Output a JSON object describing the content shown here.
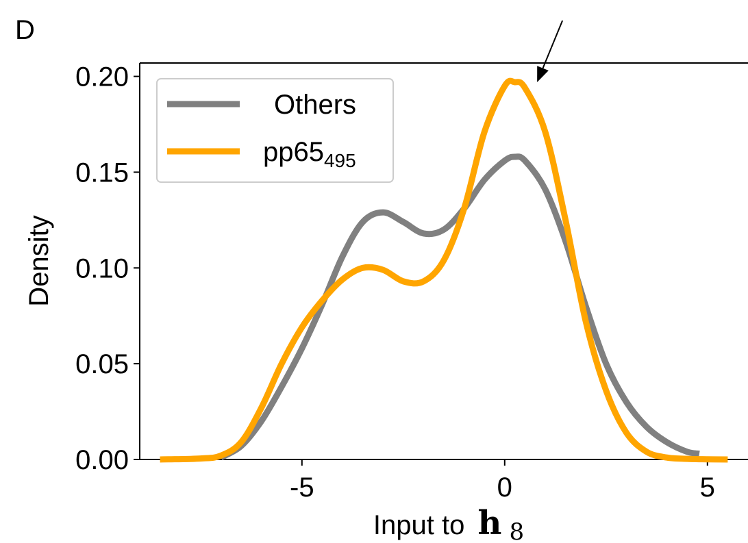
{
  "panel_label": "D",
  "chart_data": {
    "type": "line",
    "xlabel_prefix": "Input to",
    "xlabel_math": "h",
    "xlabel_math_sub": "8",
    "ylabel": "Density",
    "xlim": [
      -9.0,
      6.0
    ],
    "ylim": [
      0.0,
      0.207
    ],
    "xticks": [
      -5,
      0,
      5
    ],
    "xtick_labels": [
      "-5",
      "0",
      "5"
    ],
    "yticks": [
      0.0,
      0.05,
      0.1,
      0.15,
      0.2
    ],
    "ytick_labels": [
      "0.00",
      "0.05",
      "0.10",
      "0.15",
      "0.20"
    ],
    "legend_position": "upper-left",
    "series": [
      {
        "name": "Others",
        "color": "#808080",
        "x": [
          -7.0,
          -6.5,
          -6.0,
          -5.5,
          -5.0,
          -4.5,
          -4.0,
          -3.5,
          -3.0,
          -2.5,
          -2.0,
          -1.5,
          -1.0,
          -0.5,
          0.0,
          0.25,
          0.5,
          1.0,
          1.5,
          2.0,
          2.5,
          3.0,
          3.5,
          4.0,
          4.5,
          4.8
        ],
        "y": [
          0.001,
          0.007,
          0.02,
          0.038,
          0.058,
          0.081,
          0.106,
          0.124,
          0.129,
          0.124,
          0.118,
          0.12,
          0.131,
          0.146,
          0.156,
          0.158,
          0.156,
          0.141,
          0.114,
          0.08,
          0.05,
          0.03,
          0.017,
          0.009,
          0.004,
          0.003
        ]
      },
      {
        "name": "pp65",
        "name_sub": "495",
        "color": "#FFA500",
        "x": [
          -8.5,
          -7.5,
          -7.0,
          -6.5,
          -6.0,
          -5.5,
          -5.0,
          -4.5,
          -4.0,
          -3.5,
          -3.0,
          -2.5,
          -2.0,
          -1.5,
          -1.0,
          -0.5,
          0.0,
          0.25,
          0.5,
          1.0,
          1.5,
          2.0,
          2.5,
          3.0,
          3.5,
          4.0,
          4.5,
          5.0,
          5.5
        ],
        "y": [
          0.0,
          0.0005,
          0.002,
          0.009,
          0.027,
          0.05,
          0.069,
          0.083,
          0.094,
          0.1,
          0.099,
          0.093,
          0.093,
          0.104,
          0.131,
          0.171,
          0.195,
          0.197,
          0.194,
          0.171,
          0.125,
          0.072,
          0.036,
          0.014,
          0.004,
          0.001,
          0.0003,
          0.0001,
          0.0
        ]
      }
    ],
    "annotation": {
      "type": "arrow",
      "target_x": 0.8,
      "target_y": 0.197
    }
  }
}
